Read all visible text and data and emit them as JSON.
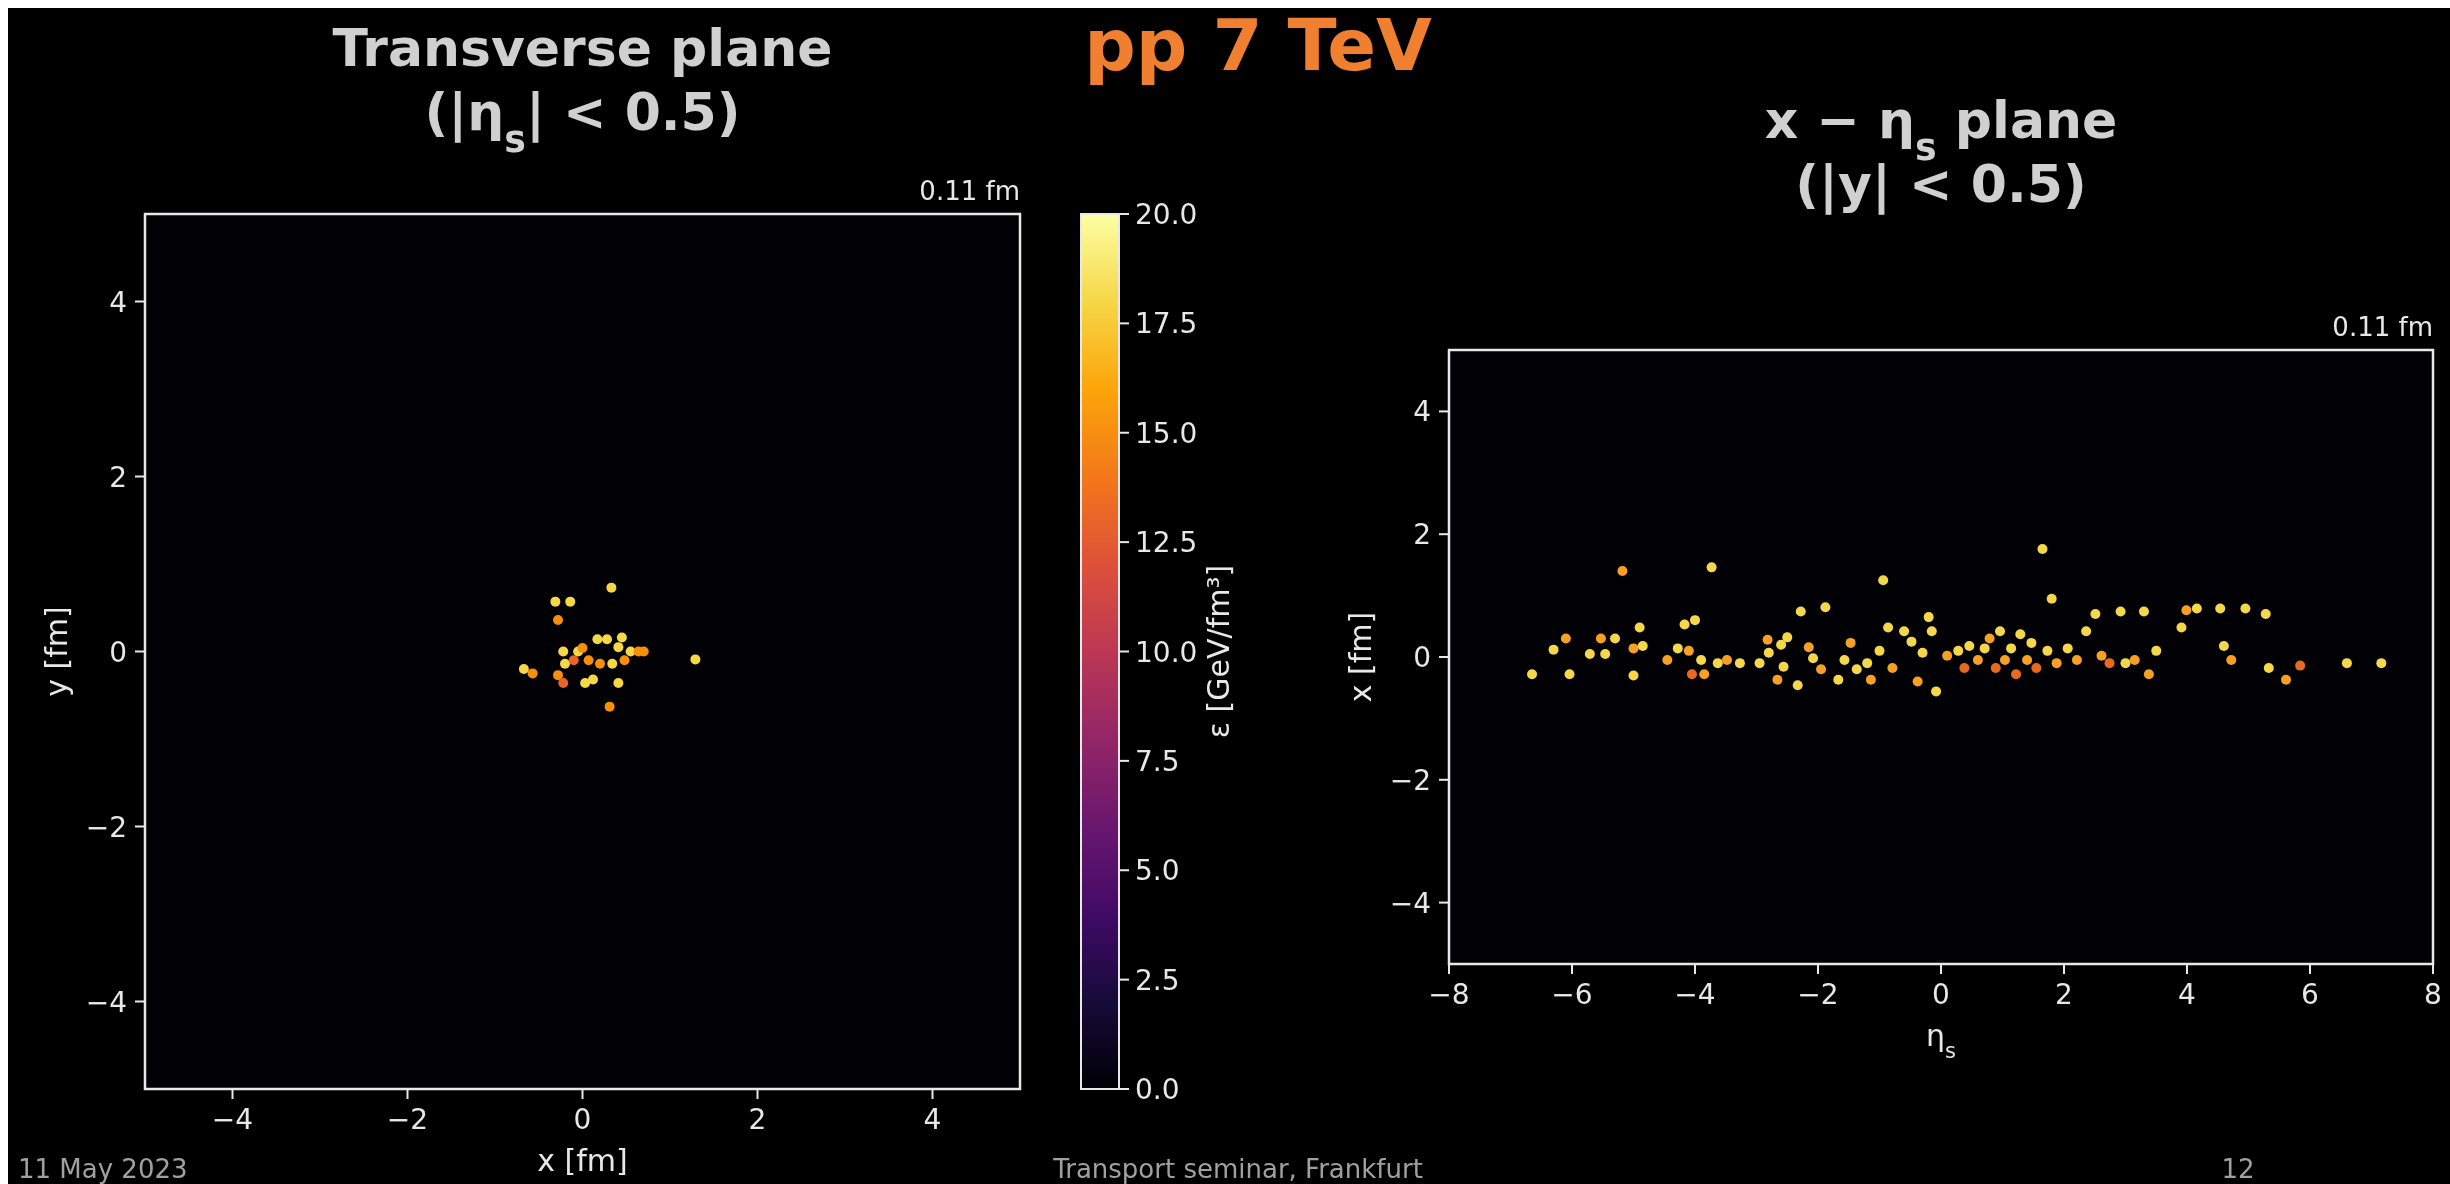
{
  "chart_data": [
    {
      "type": "scatter",
      "title": "Transverse plane\n(|η$_{s}$| < 0.5)",
      "xlabel": "x [fm]",
      "ylabel": "y [fm]",
      "clabel": "ε [GeV/fm³]",
      "xlim": [
        -5,
        5
      ],
      "ylim": [
        -5,
        5
      ],
      "xticks": [
        -4,
        -2,
        0,
        2,
        4
      ],
      "yticks": [
        -4,
        -2,
        0,
        2,
        4
      ],
      "clim": [
        0,
        20
      ],
      "cticks": [
        {
          "value": 0,
          "label": "0.0"
        },
        2.5,
        {
          "value": 5,
          "label": "5.0"
        },
        7.5,
        {
          "value": 10,
          "label": "10.0"
        },
        12.5,
        {
          "value": 15,
          "label": "15.0"
        },
        17.5,
        {
          "value": 20,
          "label": "20.0"
        }
      ],
      "marker": "circle",
      "grid": false,
      "annotations": [
        "0.11 fm",
        "pp 7 TeV",
        "11 May 2023",
        "Transport seminar, Frankfurt",
        "12"
      ],
      "series": [
        {
          "x": [
            -0.67,
            -0.57,
            -0.31,
            -0.14,
            -0.28,
            -0.28,
            -0.22,
            -0.2,
            -0.1,
            -0.05,
            0.07,
            0.17,
            0.28,
            0.33,
            0.2,
            0.34,
            0.41,
            0.45,
            0.48,
            0.55,
            0.64,
            0.7,
            0.41,
            0.31,
            0.03,
            1.29,
            -0.22,
            0,
            0.12
          ],
          "values": [
            -0.2,
            -0.25,
            0.57,
            0.57,
            0.36,
            -0.27,
            -0.36,
            -0.14,
            -0.1,
            0,
            -0.1,
            0.14,
            0.14,
            0.73,
            -0.14,
            -0.14,
            0.05,
            0.16,
            -0.1,
            0,
            0,
            0,
            -0.36,
            -0.63,
            -0.36,
            -0.09,
            0,
            0.04,
            -0.32
          ],
          "cvalues": [
            18,
            15,
            18,
            18,
            15,
            15,
            13,
            18,
            13,
            18,
            15,
            18,
            18,
            18,
            15,
            18,
            18,
            18,
            15,
            18,
            15,
            15,
            18,
            15,
            18,
            18,
            18,
            15,
            18
          ]
        }
      ]
    },
    {
      "type": "scatter",
      "title": "x − η$_{s}$ plane\n(|y| < 0.5)",
      "xlabel": "η$_{s}$",
      "ylabel": "x [fm]",
      "xlim": [
        -8,
        8
      ],
      "ylim": [
        -5,
        5
      ],
      "xticks": [
        -8,
        -6,
        -4,
        -2,
        0,
        2,
        4,
        6,
        8
      ],
      "yticks": [
        -4,
        -2,
        0,
        2,
        4
      ],
      "marker": "circle",
      "grid": false,
      "annotations": [
        "0.11 fm"
      ],
      "series": [
        {
          "x": [
            -6.65,
            -6.3,
            -6.1,
            -6.04,
            -5.71,
            -5.53,
            -5.46,
            -5.18,
            -5.3,
            -5,
            -4.85,
            -4.9,
            -5,
            -4.45,
            -4.28,
            -4.17,
            -4,
            -4.1,
            -4.05,
            -3.9,
            -3.85,
            -3.73,
            -3.63,
            -3.48,
            -3.27,
            -2.95,
            -2.8,
            -2.82,
            -2.6,
            -2.56,
            -2.66,
            -2.33,
            -2.5,
            -2.28,
            -2.15,
            -2.08,
            -1.88,
            -1.95,
            -1.67,
            -1.57,
            -1.47,
            -1.37,
            -1.2,
            -1.14,
            -1,
            -0.94,
            -0.86,
            -0.79,
            -0.6,
            -0.48,
            -0.38,
            -0.3,
            -0.2,
            -0.15,
            -0.08,
            0.1,
            0.28,
            0.38,
            0.46,
            0.6,
            0.71,
            0.79,
            0.89,
            0.96,
            1.04,
            1.14,
            1.22,
            1.29,
            1.4,
            1.47,
            1.55,
            1.65,
            1.73,
            1.8,
            1.88,
            2.06,
            2.21,
            2.36,
            2.51,
            2.61,
            2.74,
            2.92,
            3,
            3.15,
            3.3,
            3.38,
            3.5,
            3.91,
            3.99,
            4.16,
            4.54,
            4.6,
            4.72,
            4.95,
            5.28,
            5.33,
            5.61,
            5.84,
            6.6,
            7.16
          ],
          "values": [
            -0.28,
            0.12,
            0.3,
            -0.28,
            0.05,
            0.3,
            0.05,
            1.4,
            0.3,
            0.14,
            0.18,
            0.48,
            -0.3,
            -0.05,
            0.14,
            0.53,
            0.6,
            0.1,
            -0.28,
            -0.05,
            -0.28,
            1.46,
            -0.1,
            -0.05,
            -0.1,
            -0.1,
            0.07,
            0.28,
            0.2,
            -0.16,
            -0.37,
            -0.46,
            0.32,
            0.74,
            0.16,
            -0.02,
            0.81,
            -0.2,
            -0.37,
            -0.05,
            0.23,
            -0.2,
            -0.1,
            -0.37,
            0.1,
            1.25,
            0.48,
            -0.18,
            0.42,
            0.25,
            -0.4,
            0.07,
            0.65,
            0.42,
            -0.56,
            0.02,
            0.1,
            -0.18,
            0.18,
            -0.05,
            0.14,
            0.3,
            -0.18,
            0.42,
            -0.05,
            0.14,
            -0.28,
            0.37,
            -0.05,
            0.23,
            -0.18,
            1.76,
            0.1,
            0.95,
            -0.1,
            0.14,
            -0.05,
            0.42,
            0.7,
            0.02,
            -0.1,
            0.74,
            -0.1,
            -0.05,
            0.74,
            -0.28,
            0.1,
            0.48,
            0.76,
            0.79,
            0.79,
            0.18,
            -0.05,
            0.79,
            0.7,
            -0.18,
            -0.37,
            -0.14,
            -0.1,
            -0.1
          ],
          "colors": [
            "#f5d84a",
            "#f5d84a",
            "#f7a023",
            "#f5d84a",
            "#f5d84a",
            "#f7a023",
            "#f5d84a",
            "#f7a023",
            "#f5d84a",
            "#f7a023",
            "#f5d84a",
            "#f5d84a",
            "#f5d84a",
            "#f7a023",
            "#f5d84a",
            "#f5d84a",
            "#f5d84a",
            "#f7a023",
            "#e86a1e",
            "#f5d84a",
            "#f7a023",
            "#f5d84a",
            "#f5d84a",
            "#f7a023",
            "#f5d84a",
            "#f5d84a",
            "#f5d84a",
            "#f7a023",
            "#f5d84a",
            "#f5d84a",
            "#f7a023",
            "#f5d84a",
            "#f5d84a",
            "#f5d84a",
            "#f7a023",
            "#f5d84a",
            "#f5d84a",
            "#f7a023",
            "#f5d84a",
            "#f5d84a",
            "#f7a023",
            "#f5d84a",
            "#f5d84a",
            "#f7a023",
            "#f5d84a",
            "#f5d84a",
            "#f5d84a",
            "#f7a023",
            "#f5d84a",
            "#f5d84a",
            "#f7a023",
            "#f5d84a",
            "#f5d84a",
            "#f5d84a",
            "#f5d84a",
            "#f7a023",
            "#f5d84a",
            "#e86a1e",
            "#f5d84a",
            "#f7a023",
            "#f5d84a",
            "#f7a023",
            "#e86a1e",
            "#f5d84a",
            "#f7a023",
            "#f5d84a",
            "#e86a1e",
            "#f5d84a",
            "#f7a023",
            "#f5d84a",
            "#e86a1e",
            "#f5d84a",
            "#f5d84a",
            "#f5d84a",
            "#f7a023",
            "#f5d84a",
            "#f7a023",
            "#f5d84a",
            "#f5d84a",
            "#f7a023",
            "#e86a1e",
            "#f5d84a",
            "#f5d84a",
            "#f7a023",
            "#f5d84a",
            "#f7a023",
            "#f5d84a",
            "#f5d84a",
            "#f7a023",
            "#f5d84a",
            "#f5d84a",
            "#f5d84a",
            "#f7a023",
            "#f5d84a",
            "#f5d84a",
            "#f5d84a",
            "#f7a023",
            "#e86a1e",
            "#f5d84a",
            "#f5d84a"
          ]
        }
      ]
    }
  ]
}
